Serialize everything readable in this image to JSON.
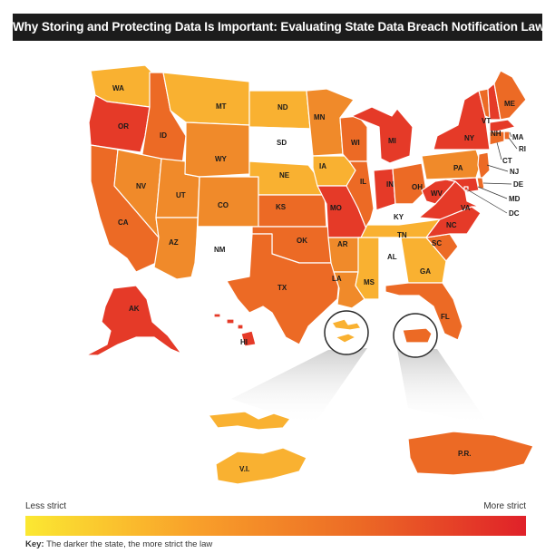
{
  "title": "Why Storing and Protecting Data Is Important: Evaluating State Data Breach Notification Laws",
  "legend": {
    "min_label": "Less strict",
    "max_label": "More strict",
    "key_prefix": "Key:",
    "key_text": "The darker the state, the more strict the law",
    "scale_colors": [
      "#fbe832",
      "#f9a12a",
      "#ec6a25",
      "#e02129"
    ]
  },
  "colors": {
    "none": "#ffffff",
    "level1": "#f9b131",
    "level2": "#f08a2a",
    "level3": "#ec6a25",
    "level4": "#e53a28"
  },
  "states": {
    "WA": {
      "label": "WA",
      "level": "level1"
    },
    "OR": {
      "label": "OR",
      "level": "level4"
    },
    "CA": {
      "label": "CA",
      "level": "level3"
    },
    "ID": {
      "label": "ID",
      "level": "level3"
    },
    "NV": {
      "label": "NV",
      "level": "level2"
    },
    "UT": {
      "label": "UT",
      "level": "level2"
    },
    "AZ": {
      "label": "AZ",
      "level": "level2"
    },
    "MT": {
      "label": "MT",
      "level": "level1"
    },
    "WY": {
      "label": "WY",
      "level": "level2"
    },
    "CO": {
      "label": "CO",
      "level": "level2"
    },
    "NM": {
      "label": "NM",
      "level": "none"
    },
    "ND": {
      "label": "ND",
      "level": "level1"
    },
    "SD": {
      "label": "SD",
      "level": "none"
    },
    "NE": {
      "label": "NE",
      "level": "level1"
    },
    "KS": {
      "label": "KS",
      "level": "level3"
    },
    "OK": {
      "label": "OK",
      "level": "level3"
    },
    "TX": {
      "label": "TX",
      "level": "level3"
    },
    "MN": {
      "label": "MN",
      "level": "level2"
    },
    "IA": {
      "label": "IA",
      "level": "level1"
    },
    "MO": {
      "label": "MO",
      "level": "level4"
    },
    "AR": {
      "label": "AR",
      "level": "level2"
    },
    "LA": {
      "label": "LA",
      "level": "level2"
    },
    "WI": {
      "label": "WI",
      "level": "level3"
    },
    "IL": {
      "label": "IL",
      "level": "level3"
    },
    "MI": {
      "label": "MI",
      "level": "level4"
    },
    "IN": {
      "label": "IN",
      "level": "level4"
    },
    "OH": {
      "label": "OH",
      "level": "level3"
    },
    "KY": {
      "label": "KY",
      "level": "none"
    },
    "TN": {
      "label": "TN",
      "level": "level1"
    },
    "MS": {
      "label": "MS",
      "level": "level1"
    },
    "AL": {
      "label": "AL",
      "level": "none"
    },
    "GA": {
      "label": "GA",
      "level": "level1"
    },
    "FL": {
      "label": "FL",
      "level": "level3"
    },
    "SC": {
      "label": "SC",
      "level": "level3"
    },
    "NC": {
      "label": "NC",
      "level": "level4"
    },
    "VA": {
      "label": "VA",
      "level": "level4"
    },
    "WV": {
      "label": "WV",
      "level": "level4"
    },
    "PA": {
      "label": "PA",
      "level": "level2"
    },
    "NY": {
      "label": "NY",
      "level": "level4"
    },
    "VT": {
      "label": "VT",
      "level": "level3"
    },
    "NH": {
      "label": "NH",
      "level": "level4"
    },
    "ME": {
      "label": "ME",
      "level": "level3"
    },
    "MA": {
      "label": "MA",
      "level": "level4"
    },
    "RI": {
      "label": "RI",
      "level": "level3"
    },
    "CT": {
      "label": "CT",
      "level": "level3"
    },
    "NJ": {
      "label": "NJ",
      "level": "level3"
    },
    "DE": {
      "label": "DE",
      "level": "level3"
    },
    "MD": {
      "label": "MD",
      "level": "level4"
    },
    "DC": {
      "label": "DC",
      "level": "level4"
    },
    "AK": {
      "label": "AK",
      "level": "level4"
    },
    "HI": {
      "label": "HI",
      "level": "level4"
    },
    "VI": {
      "label": "V.I.",
      "level": "level1"
    },
    "PR": {
      "label": "P.R.",
      "level": "level3"
    }
  }
}
